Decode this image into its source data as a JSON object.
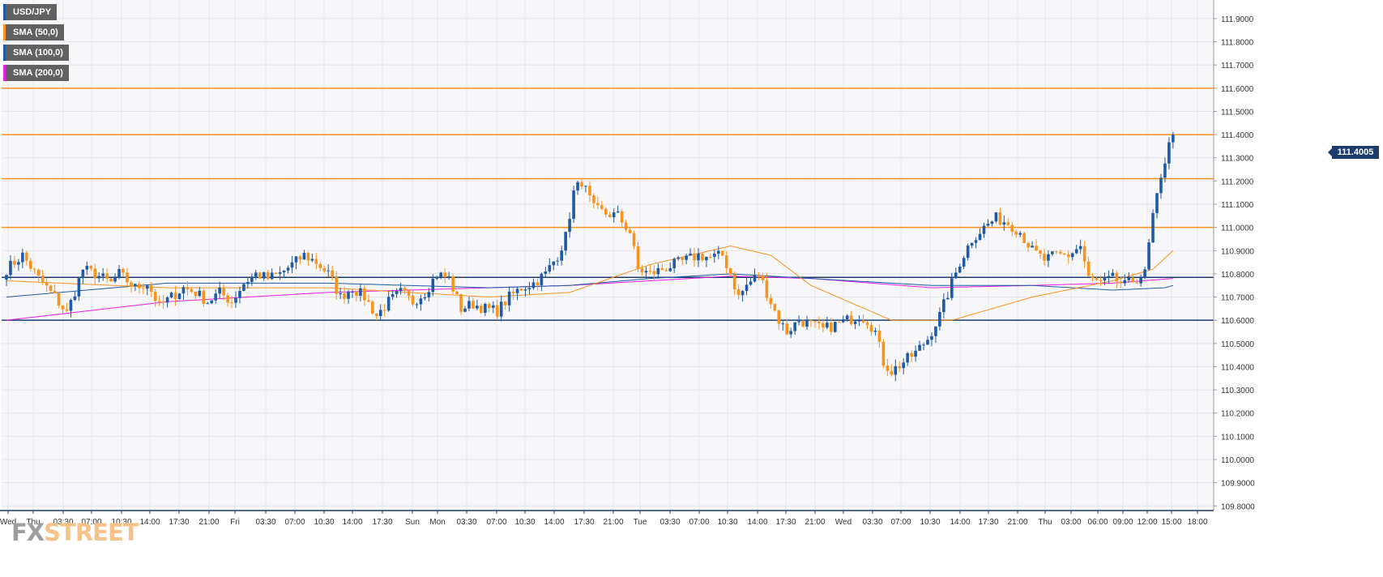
{
  "symbol": "USD/JPY",
  "indicators": [
    {
      "name": "USD/JPY",
      "color": "#1f5aa6"
    },
    {
      "name": "SMA (50,0)",
      "color": "#f7931e"
    },
    {
      "name": "SMA (100,0)",
      "color": "#1f5aa6"
    },
    {
      "name": "SMA (200,0)",
      "color": "#e91ee6"
    }
  ],
  "logo": {
    "part1": "FX",
    "part2": "STREET"
  },
  "last_price": "111.4005",
  "colors": {
    "up": "#1f5aa6",
    "down": "#f7931e",
    "sma50": "#f7931e",
    "sma100": "#1f5aa6",
    "sma200": "#e91ee6"
  },
  "chart_data": {
    "type": "candlestick",
    "y_ticks": [
      "111.9000",
      "111.8000",
      "111.7000",
      "111.6000",
      "111.5000",
      "111.4000",
      "111.3000",
      "111.2000",
      "111.1000",
      "111.0000",
      "110.9000",
      "110.8000",
      "110.7000",
      "110.6000",
      "110.5000",
      "110.4000",
      "110.3000",
      "110.2000",
      "110.1000",
      "110.0000",
      "109.9000",
      "109.8000"
    ],
    "x_labels": [
      "Wed",
      "Thu",
      "03:30",
      "07:00",
      "10:30",
      "14:00",
      "17:30",
      "21:00",
      "Fri",
      "03:30",
      "07:00",
      "10:30",
      "14:00",
      "17:30",
      "Sun",
      "Mon",
      "03:30",
      "07:00",
      "10:30",
      "14:00",
      "17:30",
      "21:00",
      "Tue",
      "03:30",
      "07:00",
      "10:30",
      "14:00",
      "17:30",
      "21:00",
      "Wed",
      "03:30",
      "07:00",
      "10:30",
      "14:00",
      "17:30",
      "21:00",
      "Thu",
      "03:00",
      "06:00",
      "09:00",
      "12:00",
      "15:00",
      "18:00"
    ],
    "ylim": [
      109.78,
      111.98
    ],
    "horizontal_levels": [
      {
        "value": 111.6,
        "color": "#f7931e"
      },
      {
        "value": 111.4,
        "color": "#f7931e"
      },
      {
        "value": 111.21,
        "color": "#f7931e"
      },
      {
        "value": 111.0,
        "color": "#f7931e"
      },
      {
        "value": 110.785,
        "color": "#1c3c6e"
      },
      {
        "value": 110.6,
        "color": "#1c3c6e"
      }
    ],
    "anchors": [
      [
        0,
        110.82
      ],
      [
        4,
        110.88
      ],
      [
        8,
        110.78
      ],
      [
        12,
        110.7
      ],
      [
        15,
        110.63
      ],
      [
        19,
        110.82
      ],
      [
        22,
        110.8
      ],
      [
        26,
        110.76
      ],
      [
        28,
        110.8
      ],
      [
        32,
        110.74
      ],
      [
        35,
        110.76
      ],
      [
        38,
        110.66
      ],
      [
        41,
        110.7
      ],
      [
        44,
        110.74
      ],
      [
        47,
        110.72
      ],
      [
        50,
        110.68
      ],
      [
        53,
        110.72
      ],
      [
        56,
        110.68
      ],
      [
        59,
        110.76
      ],
      [
        62,
        110.8
      ],
      [
        65,
        110.78
      ],
      [
        68,
        110.8
      ],
      [
        71,
        110.84
      ],
      [
        74,
        110.88
      ],
      [
        77,
        110.85
      ],
      [
        80,
        110.8
      ],
      [
        83,
        110.7
      ],
      [
        86,
        110.74
      ],
      [
        89,
        110.7
      ],
      [
        92,
        110.62
      ],
      [
        95,
        110.68
      ],
      [
        98,
        110.72
      ],
      [
        101,
        110.68
      ],
      [
        104,
        110.72
      ],
      [
        107,
        110.8
      ],
      [
        110,
        110.78
      ],
      [
        113,
        110.65
      ],
      [
        116,
        110.67
      ],
      [
        119,
        110.65
      ],
      [
        122,
        110.64
      ],
      [
        125,
        110.7
      ],
      [
        128,
        110.74
      ],
      [
        131,
        110.76
      ],
      [
        134,
        110.8
      ],
      [
        137,
        110.88
      ],
      [
        139,
        110.96
      ],
      [
        141,
        111.15
      ],
      [
        143,
        111.2
      ],
      [
        146,
        111.08
      ],
      [
        149,
        111.06
      ],
      [
        152,
        111.05
      ],
      [
        155,
        110.98
      ],
      [
        157,
        110.82
      ],
      [
        160,
        110.8
      ],
      [
        163,
        110.82
      ],
      [
        166,
        110.84
      ],
      [
        169,
        110.86
      ],
      [
        172,
        110.88
      ],
      [
        175,
        110.87
      ],
      [
        178,
        110.88
      ],
      [
        180,
        110.8
      ],
      [
        182,
        110.7
      ],
      [
        184,
        110.75
      ],
      [
        187,
        110.8
      ],
      [
        190,
        110.68
      ],
      [
        192,
        110.6
      ],
      [
        194,
        110.55
      ],
      [
        197,
        110.6
      ],
      [
        200,
        110.58
      ],
      [
        203,
        110.56
      ],
      [
        206,
        110.58
      ],
      [
        209,
        110.6
      ],
      [
        212,
        110.62
      ],
      [
        214,
        110.6
      ],
      [
        216,
        110.55
      ],
      [
        218,
        110.42
      ],
      [
        220,
        110.38
      ],
      [
        223,
        110.42
      ],
      [
        226,
        110.46
      ],
      [
        229,
        110.52
      ],
      [
        232,
        110.62
      ],
      [
        235,
        110.76
      ],
      [
        237,
        110.85
      ],
      [
        240,
        110.95
      ],
      [
        243,
        111.0
      ],
      [
        246,
        111.04
      ],
      [
        249,
        111.02
      ],
      [
        252,
        110.98
      ],
      [
        255,
        110.9
      ],
      [
        258,
        110.86
      ],
      [
        261,
        110.88
      ],
      [
        264,
        110.88
      ],
      [
        267,
        110.92
      ],
      [
        269,
        110.78
      ],
      [
        272,
        110.76
      ],
      [
        275,
        110.78
      ],
      [
        278,
        110.75
      ],
      [
        281,
        110.78
      ],
      [
        283,
        110.8
      ],
      [
        285,
        111.05
      ],
      [
        287,
        111.2
      ],
      [
        289,
        111.38
      ],
      [
        290,
        111.4
      ]
    ],
    "sma50": [
      [
        0,
        110.77
      ],
      [
        40,
        110.74
      ],
      [
        80,
        110.74
      ],
      [
        120,
        110.7
      ],
      [
        140,
        110.72
      ],
      [
        160,
        110.84
      ],
      [
        180,
        110.92
      ],
      [
        190,
        110.88
      ],
      [
        200,
        110.75
      ],
      [
        220,
        110.6
      ],
      [
        235,
        110.6
      ],
      [
        255,
        110.7
      ],
      [
        275,
        110.77
      ],
      [
        285,
        110.82
      ],
      [
        290,
        110.9
      ]
    ],
    "sma100": [
      [
        0,
        110.7
      ],
      [
        40,
        110.76
      ],
      [
        80,
        110.76
      ],
      [
        120,
        110.74
      ],
      [
        140,
        110.75
      ],
      [
        160,
        110.78
      ],
      [
        180,
        110.8
      ],
      [
        200,
        110.78
      ],
      [
        230,
        110.75
      ],
      [
        255,
        110.75
      ],
      [
        275,
        110.73
      ],
      [
        288,
        110.74
      ],
      [
        290,
        110.75
      ]
    ],
    "sma200": [
      [
        0,
        110.6
      ],
      [
        40,
        110.68
      ],
      [
        80,
        110.72
      ],
      [
        120,
        110.74
      ],
      [
        140,
        110.75
      ],
      [
        160,
        110.77
      ],
      [
        180,
        110.79
      ],
      [
        200,
        110.78
      ],
      [
        230,
        110.74
      ],
      [
        255,
        110.75
      ],
      [
        275,
        110.76
      ],
      [
        290,
        110.78
      ]
    ]
  }
}
